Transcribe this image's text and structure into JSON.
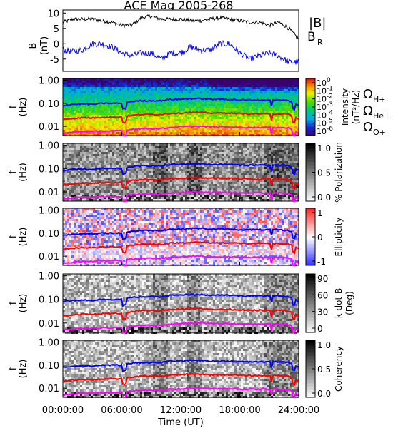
{
  "title": "ACE Mag 2005-268",
  "x_axis": {
    "label": "Time (UT)",
    "ticks": [
      "00:00:00",
      "06:00:00",
      "12:00:00",
      "18:00:00",
      "24:00:00"
    ],
    "range_hours": [
      0,
      24
    ]
  },
  "legend_top": [
    {
      "text": "|B|",
      "color": "#000000"
    },
    {
      "text": "B",
      "sub": "R",
      "color": "#0000ff"
    }
  ],
  "legend_freq": [
    {
      "text": "Ω",
      "sub": "H+",
      "color": "#0000ff"
    },
    {
      "text": "Ω",
      "sub": "He+",
      "color": "#ff0000"
    },
    {
      "text": "Ω",
      "sub": "O+",
      "color": "#ff00ff"
    }
  ],
  "panel_b": {
    "ylabel": "B",
    "yunit": "(nT)",
    "yticks": [
      "10",
      "5",
      "0",
      "-5"
    ],
    "ylim": [
      -9,
      11
    ]
  },
  "freq_axis": {
    "ylabel": "f",
    "yunit": "(Hz)",
    "yticks": [
      "1.00",
      "0.10",
      "0.01"
    ],
    "ylim": [
      0.004,
      1.2
    ],
    "scale": "log"
  },
  "colorbars": [
    {
      "label": "Intensity",
      "unit": "(nT²/Hz)",
      "ticks": [
        "10^0",
        "10^-1",
        "10^-2",
        "10^-3",
        "10^-4",
        "10^-5",
        "10^-6"
      ],
      "palette": "rainbow"
    },
    {
      "label": "% Polarization",
      "unit": "",
      "ticks": [
        "1.0",
        "0.5",
        "0.0"
      ],
      "palette": "gray"
    },
    {
      "label": "Ellipticity",
      "unit": "",
      "ticks": [
        "1",
        "0",
        "-1"
      ],
      "palette": "bwr"
    },
    {
      "label": "k dot B",
      "unit": "(Deg)",
      "ticks": [
        "90",
        "60",
        "30",
        "0"
      ],
      "palette": "gray"
    },
    {
      "label": "Coherency",
      "unit": "",
      "ticks": [
        "1.0",
        "0.5",
        "0.0"
      ],
      "palette": "gray"
    }
  ],
  "chart_data": {
    "type": "line",
    "title": "ACE Mag 2005-268",
    "xlabel": "Time (UT)",
    "x": [
      0,
      1,
      2,
      3,
      4,
      5,
      6,
      7,
      8,
      9,
      10,
      11,
      12,
      13,
      14,
      15,
      16,
      17,
      18,
      19,
      20,
      21,
      22,
      23,
      24
    ],
    "series": [
      {
        "name": "|B|",
        "panel": "B",
        "values": [
          7,
          8,
          8,
          8,
          7.5,
          7,
          6,
          6,
          8.5,
          9,
          8,
          8,
          8,
          7.5,
          7.5,
          8,
          8.5,
          8,
          7.5,
          7,
          7,
          6,
          7,
          5,
          1.5
        ]
      },
      {
        "name": "B_R",
        "panel": "B",
        "values": [
          -2,
          -2.5,
          -2,
          0,
          0,
          -1,
          -3,
          -4,
          -3,
          -3,
          -5,
          -3,
          -3,
          -1,
          -2,
          -2,
          0,
          0,
          -3,
          -5,
          -4,
          -3,
          -4,
          -6,
          -6
        ]
      },
      {
        "name": "Ω_H+",
        "panel": "f",
        "values": [
          0.08,
          0.09,
          0.095,
          0.09,
          0.1,
          0.1,
          0.1,
          0.12,
          0.13,
          0.13,
          0.13,
          0.15,
          0.15,
          0.16,
          0.16,
          0.15,
          0.15,
          0.15,
          0.14,
          0.14,
          0.14,
          0.14,
          0.14,
          0.13,
          0.08
        ]
      },
      {
        "name": "Ω_He+",
        "panel": "f",
        "values": [
          0.02,
          0.022,
          0.024,
          0.023,
          0.025,
          0.025,
          0.026,
          0.03,
          0.033,
          0.033,
          0.033,
          0.037,
          0.038,
          0.04,
          0.04,
          0.038,
          0.038,
          0.038,
          0.036,
          0.035,
          0.035,
          0.035,
          0.035,
          0.033,
          0.02
        ]
      },
      {
        "name": "Ω_O+",
        "panel": "f",
        "values": [
          0.005,
          0.0055,
          0.006,
          0.006,
          0.0062,
          0.0062,
          0.0065,
          0.0075,
          0.008,
          0.008,
          0.008,
          0.009,
          0.0095,
          0.01,
          0.01,
          0.0095,
          0.0095,
          0.0095,
          0.009,
          0.009,
          0.009,
          0.009,
          0.009,
          0.0085,
          0.005
        ]
      }
    ]
  }
}
